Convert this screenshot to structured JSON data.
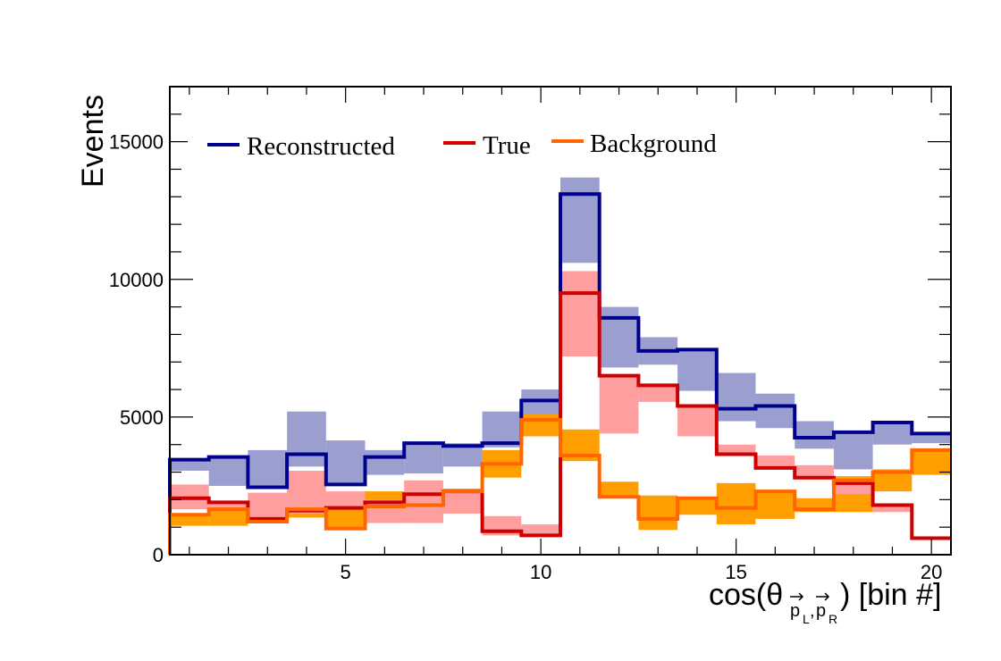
{
  "chart_data": {
    "type": "step-histogram",
    "xlabel": "cos(θ",
    "xlabel_sub1": "p",
    "xlabel_sub1b": "L",
    "xlabel_sub2": "p",
    "xlabel_sub2b": "R",
    "xlabel_tail": ") [bin #]",
    "ylabel": "Events",
    "xlim": [
      0.5,
      20.5
    ],
    "ylim": [
      0,
      17000
    ],
    "xticks": [
      "5",
      "10",
      "15",
      "20"
    ],
    "xtick_values": [
      5,
      10,
      15,
      20
    ],
    "yticks": [
      "0",
      "5000",
      "10000",
      "15000"
    ],
    "ytick_values": [
      0,
      5000,
      10000,
      15000
    ],
    "legend_position": "top-left",
    "series": [
      {
        "name": "Reconstructed",
        "color": "#00008f",
        "band_color": "#9b9fd0",
        "values": [
          3450,
          3550,
          2450,
          3650,
          2550,
          3550,
          4050,
          3950,
          4050,
          5600,
          13100,
          8600,
          7400,
          7450,
          5300,
          5400,
          4250,
          4450,
          4800,
          4400
        ],
        "band_low": [
          3050,
          2500,
          2450,
          3200,
          2500,
          2900,
          2950,
          3200,
          3900,
          4700,
          10600,
          6800,
          6900,
          5950,
          4850,
          4600,
          3850,
          3100,
          4000,
          4050
        ],
        "band_high": [
          3500,
          3550,
          3800,
          5200,
          4150,
          3800,
          4050,
          4050,
          5200,
          6000,
          13700,
          9000,
          7900,
          7450,
          6600,
          5850,
          4850,
          4450,
          4800,
          4400
        ]
      },
      {
        "name": "True",
        "color": "#cc0000",
        "band_color": "#ff9e9e",
        "values": [
          2050,
          1900,
          1300,
          1600,
          1700,
          1900,
          2200,
          2300,
          850,
          700,
          9500,
          6500,
          6150,
          5400,
          3650,
          3150,
          2800,
          2600,
          1800,
          600
        ],
        "band_low": [
          1650,
          1700,
          1200,
          1500,
          1650,
          1150,
          1150,
          1500,
          700,
          700,
          7200,
          4400,
          5550,
          4300,
          3650,
          3150,
          2850,
          2200,
          1550,
          600
        ],
        "band_high": [
          2550,
          1900,
          2250,
          3050,
          2300,
          2000,
          2700,
          2300,
          1400,
          1100,
          10300,
          6500,
          6150,
          5400,
          4000,
          3600,
          3250,
          2600,
          1800,
          600
        ]
      },
      {
        "name": "Background",
        "color": "#ff6600",
        "band_color": "#ff9e00",
        "values": [
          1450,
          1650,
          1200,
          1650,
          950,
          1750,
          1800,
          2300,
          3300,
          4900,
          3600,
          2100,
          1300,
          2050,
          1700,
          2300,
          1650,
          2700,
          3000,
          3800
        ],
        "band_low": [
          1050,
          1050,
          1200,
          1350,
          950,
          1250,
          1200,
          1500,
          2800,
          4300,
          3400,
          2100,
          900,
          1450,
          1100,
          1300,
          1550,
          1550,
          2300,
          2900
        ],
        "band_high": [
          1450,
          1700,
          1450,
          2300,
          1800,
          2300,
          2200,
          2400,
          3800,
          5100,
          4550,
          2650,
          2150,
          2100,
          2600,
          2300,
          2050,
          2850,
          3100,
          3850
        ]
      }
    ]
  }
}
